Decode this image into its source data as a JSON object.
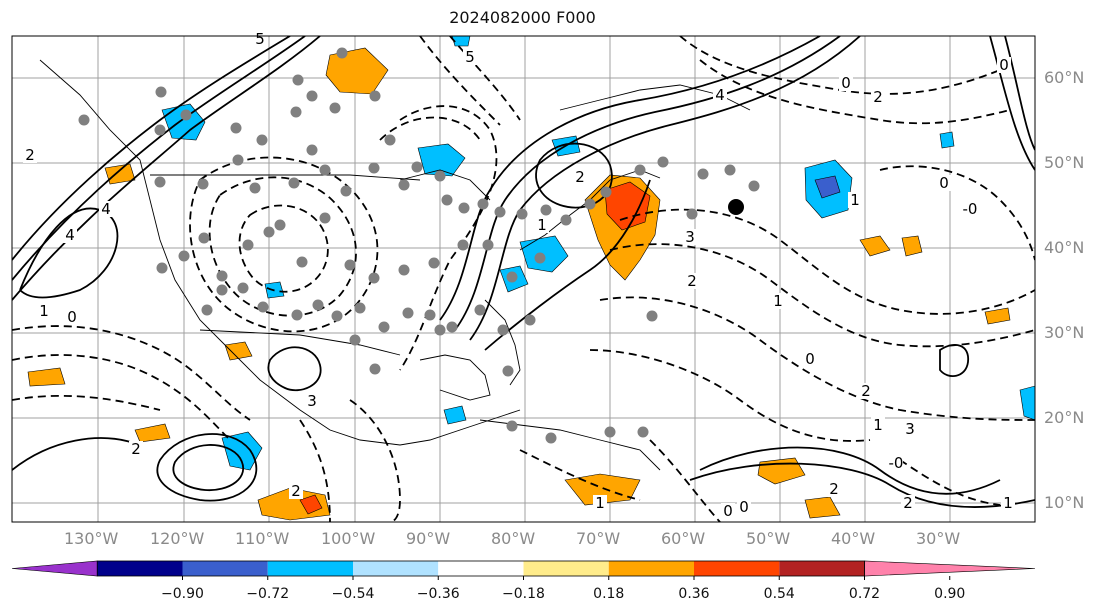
{
  "title": "2024082000 F000",
  "map": {
    "longitude_labels": [
      "130°W",
      "120°W",
      "110°W",
      "100°W",
      "90°W",
      "80°W",
      "70°W",
      "60°W",
      "50°W",
      "40°W",
      "30°W"
    ],
    "latitude_labels": [
      "60°N",
      "50°N",
      "40°N",
      "30°N",
      "20°N",
      "10°N"
    ],
    "contour_labels": [
      "5",
      "5",
      "4",
      "2",
      "4",
      "4",
      "2",
      "0",
      "2",
      "1",
      "3",
      "1",
      "2",
      "1",
      "0",
      "0",
      "2",
      "3",
      "1",
      "2",
      "0",
      "0",
      "1",
      "-0",
      "2",
      "2",
      "1",
      "-0",
      "0",
      "1",
      "3",
      "0",
      "2"
    ],
    "colors": {
      "positive_contour": "#000000",
      "negative_contour": "#000000",
      "station_marker": "#808080",
      "highlight_marker": "#000000",
      "gridline": "#a0a0a0"
    }
  },
  "colorbar": {
    "ticks": [
      "−0.90",
      "−0.72",
      "−0.54",
      "−0.36",
      "−0.18",
      "0.18",
      "0.36",
      "0.54",
      "0.72",
      "0.90"
    ],
    "colors": [
      "#9932cc",
      "#00008b",
      "#3a5fcd",
      "#00bfff",
      "#b0e2ff",
      "#ffffff",
      "#ffec8b",
      "#ffa500",
      "#ff4500",
      "#b22222",
      "#ff82ab"
    ]
  }
}
